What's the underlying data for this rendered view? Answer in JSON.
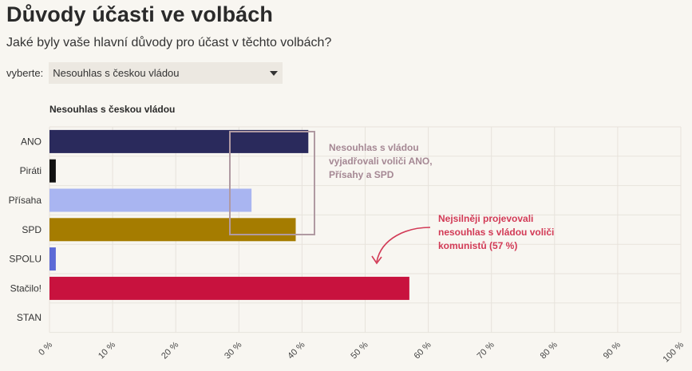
{
  "header": {
    "title": "Důvody účasti ve volbách",
    "subtitle": "Jaké byly vaše hlavní důvody pro účast v těchto volbách?"
  },
  "selector": {
    "label": "vyberte:",
    "selected": "Nesouhlas s českou vládou"
  },
  "chart_data": {
    "type": "bar",
    "orientation": "horizontal",
    "title": "Nesouhlas s českou vládou",
    "categories": [
      "ANO",
      "Piráti",
      "Přísaha",
      "SPD",
      "SPOLU",
      "Stačilo!",
      "STAN"
    ],
    "values": [
      41,
      1,
      32,
      39,
      1,
      57,
      0
    ],
    "colors": [
      "#2a2a5c",
      "#111111",
      "#a9b5f1",
      "#a57c00",
      "#5c6ad6",
      "#c8123e",
      "#cccccc"
    ],
    "xlim": [
      0,
      100
    ],
    "xticks": [
      "0 %",
      "10 %",
      "20 %",
      "30 %",
      "40 %",
      "50 %",
      "60 %",
      "70 %",
      "80 %",
      "90 %",
      "100 %"
    ],
    "grid": true,
    "annotations": [
      {
        "text": "Nesouhlas s vládou vyjadřovali voliči ANO, Přísahy a SPD",
        "color": "#a58894"
      },
      {
        "text": "Nejsilněji projevovali nesouhlas s vládou voliči komunistů (57 %)",
        "color": "#d23a56"
      }
    ]
  }
}
